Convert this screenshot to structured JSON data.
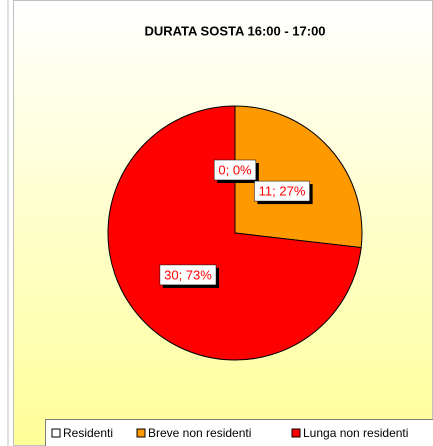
{
  "chart_data": {
    "type": "pie",
    "title": "DURATA SOSTA 16:00 - 17:00",
    "categories": [
      "Residenti",
      "Breve non residenti",
      "Lunga non residenti"
    ],
    "values": [
      0,
      11,
      30
    ],
    "value_labels": [
      "0; 0%",
      "11; 27%",
      "30; 73%"
    ],
    "colors": [
      "#ffffff",
      "#ff9900",
      "#ff0000"
    ]
  }
}
